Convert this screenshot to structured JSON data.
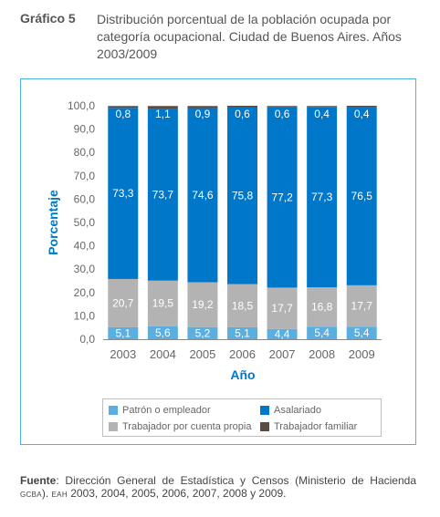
{
  "header": {
    "label": "Gráfico 5",
    "title": "Distribución porcentual de la población ocupada por categoría ocupacional. Ciudad de Buenos Aires. Años 2003/2009"
  },
  "chart_data": {
    "type": "bar",
    "stacked": true,
    "categories": [
      "2003",
      "2004",
      "2005",
      "2006",
      "2007",
      "2008",
      "2009"
    ],
    "series": [
      {
        "name": "Patrón o empleador",
        "color": "#5aaee0",
        "values": [
          5.1,
          5.6,
          5.2,
          5.1,
          4.4,
          5.4,
          5.4
        ]
      },
      {
        "name": "Trabajador por cuenta propia",
        "color": "#b3b3b3",
        "values": [
          20.7,
          19.5,
          19.2,
          18.5,
          17.7,
          16.8,
          17.7
        ]
      },
      {
        "name": "Asalariado",
        "color": "#0077c8",
        "values": [
          73.3,
          73.7,
          74.6,
          75.8,
          77.2,
          77.3,
          76.5
        ]
      },
      {
        "name": "Trabajador familiar",
        "color": "#5b4b45",
        "values": [
          0.8,
          1.1,
          0.9,
          0.6,
          0.6,
          0.4,
          0.4
        ]
      }
    ],
    "data_labels": {
      "Patrón o empleador": [
        "5,1",
        "5,6",
        "5,2",
        "5,1",
        "4,4",
        "5,4",
        "5,4"
      ],
      "Trabajador por cuenta propia": [
        "20,7",
        "19,5",
        "19,2",
        "18,5",
        "17,7",
        "16,8",
        "17,7"
      ],
      "Asalariado": [
        "73,3",
        "73,7",
        "74,6",
        "75,8",
        "77,2",
        "77,3",
        "76,5"
      ],
      "Trabajador familiar": [
        "0,8",
        "1,1",
        "0,9",
        "0,6",
        "0,6",
        "0,4",
        "0,4"
      ]
    },
    "y_ticks": [
      "0,0",
      "10,0",
      "20,0",
      "30,0",
      "40,0",
      "50,0",
      "60,0",
      "70,0",
      "80,0",
      "90,0",
      "100,0"
    ],
    "ylim": [
      0,
      100
    ],
    "xlabel": "Año",
    "ylabel": "Porcentaje",
    "grid": false,
    "legend_position": "bottom",
    "legend_order": [
      "Patrón o empleador",
      "Asalariado",
      "Trabajador por cuenta propia",
      "Trabajador familiar"
    ]
  },
  "footer": {
    "source_label": "Fuente",
    "source_text_1": ": Dirección General de Estadística y Censos (Ministerio de Hacienda ",
    "source_gcba": "GCBA",
    "source_text_2": "). ",
    "source_eah": "EAH",
    "source_text_3": " 2003, 2004, 2005, 2006, 2007, 2008 y 2009."
  }
}
